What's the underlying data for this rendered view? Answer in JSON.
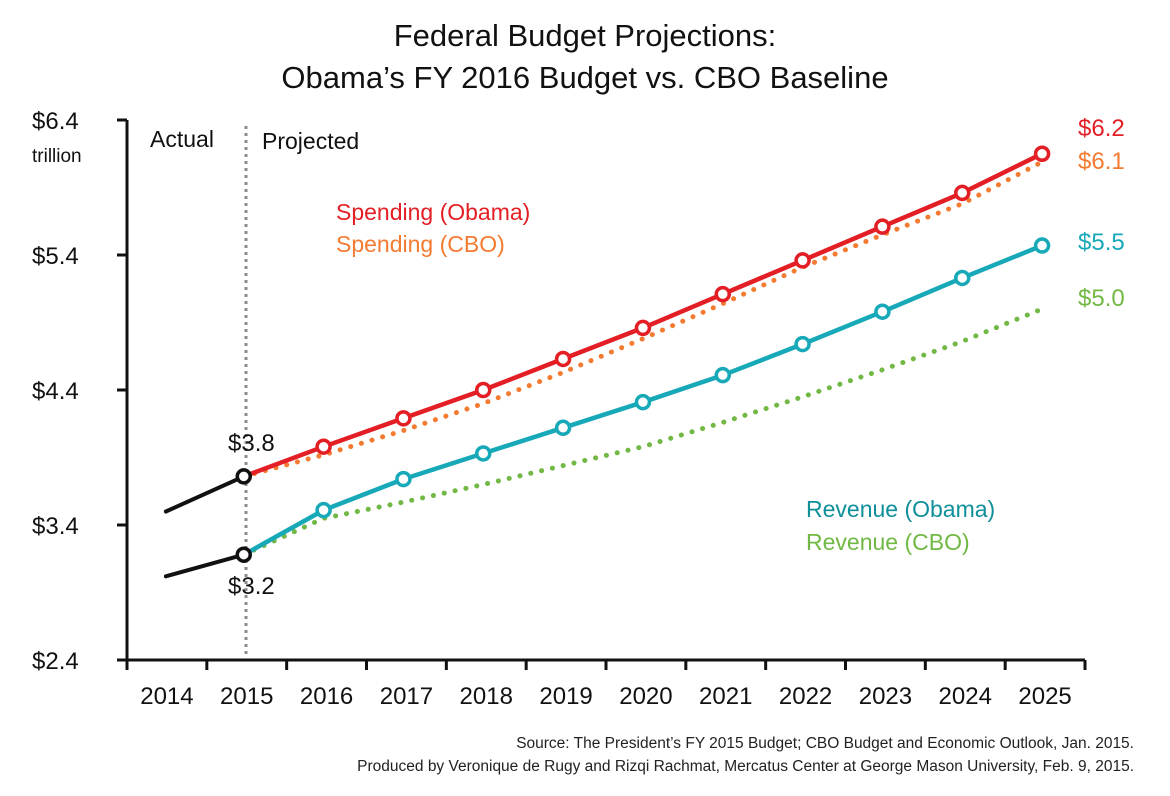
{
  "chart_data": {
    "type": "line",
    "title": "Federal Budget Projections:",
    "subtitle": "Obama’s FY 2016 Budget vs. CBO Baseline",
    "ylabel_top": "$6.4",
    "ylabel_unit": "trillion",
    "yticks": [
      "$6.4",
      "$5.4",
      "$4.4",
      "$3.4",
      "$2.4"
    ],
    "ylim": [
      2.4,
      6.4
    ],
    "categories": [
      "2014",
      "2015",
      "2016",
      "2017",
      "2018",
      "2019",
      "2020",
      "2021",
      "2022",
      "2023",
      "2024",
      "2025"
    ],
    "divider_labels": {
      "actual": "Actual",
      "projected": "Projected"
    },
    "series": [
      {
        "name": "Spending (Obama)",
        "color": "#e31e24",
        "style": "solid-markers",
        "values": [
          3.5,
          3.76,
          3.98,
          4.19,
          4.4,
          4.63,
          4.86,
          5.11,
          5.36,
          5.61,
          5.86,
          6.15
        ]
      },
      {
        "name": "Spending (CBO)",
        "color": "#f47b32",
        "style": "dotted",
        "values": [
          null,
          3.76,
          3.92,
          4.1,
          4.3,
          4.53,
          4.78,
          5.04,
          5.31,
          5.55,
          5.78,
          6.09
        ]
      },
      {
        "name": "Revenue (Obama)",
        "color": "#17a9b8",
        "style": "solid-markers",
        "values": [
          3.02,
          3.18,
          3.51,
          3.74,
          3.93,
          4.12,
          4.31,
          4.51,
          4.74,
          4.98,
          5.23,
          5.47
        ]
      },
      {
        "name": "Revenue (CBO)",
        "color": "#71b844",
        "style": "dotted",
        "values": [
          null,
          3.18,
          3.45,
          3.57,
          3.7,
          3.84,
          3.98,
          4.16,
          4.35,
          4.55,
          4.76,
          5.0
        ]
      }
    ],
    "annotations": {
      "spend_2015": "$3.8",
      "rev_2015": "$3.2",
      "end_spend_obama": "$6.2",
      "end_spend_cbo": "$6.1",
      "end_rev_obama": "$5.5",
      "end_rev_cbo": "$5.0"
    },
    "grid": false
  },
  "source": {
    "line1": "Source: The President’s FY 2015 Budget; CBO Budget and Economic Outlook, Jan. 2015.",
    "line2": "Produced by Veronique de Rugy and Rizqi Rachmat, Mercatus Center at George Mason University, Feb. 9, 2015."
  }
}
